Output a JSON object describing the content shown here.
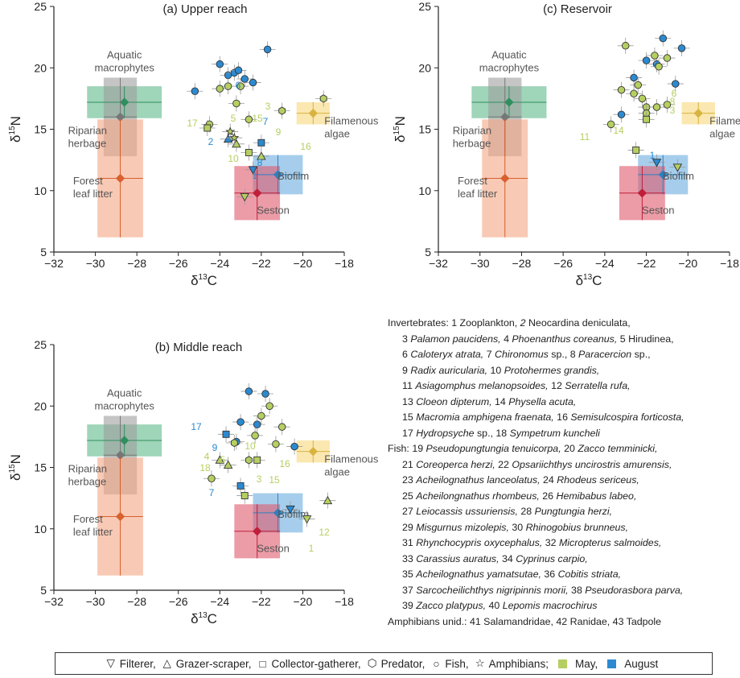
{
  "panels": [
    {
      "title": "(a) Upper reach",
      "sources": [
        {
          "label": "Aquatic\nmacrophytes",
          "x": -28.6,
          "y": 17.2
        },
        {
          "label": "Riparian\nherbage",
          "x": -28.8,
          "y": 16.0
        },
        {
          "label": "Forest\nleaf litter",
          "x": -28.8,
          "y": 11.0
        },
        {
          "label": "Filamenous\nalgae",
          "x": -19.5,
          "y": 16.3
        },
        {
          "label": "Biofilm",
          "x": -21.2,
          "y": 11.3
        },
        {
          "label": "Seston",
          "x": -22.2,
          "y": 9.8
        }
      ],
      "labels": [
        "1",
        "2",
        "3",
        "5",
        "6",
        "7",
        "8",
        "9",
        "10",
        "15",
        "16",
        "17"
      ]
    },
    {
      "title": "(b) Middle reach",
      "sources": [
        {
          "label": "Aquatic\nmacrophytes",
          "x": -28.6,
          "y": 17.2
        },
        {
          "label": "Riparian\nherbage",
          "x": -28.8,
          "y": 16.0
        },
        {
          "label": "Forest\nleaf litter",
          "x": -28.8,
          "y": 11.0
        },
        {
          "label": "Filamenous\nalgae",
          "x": -19.5,
          "y": 16.3
        },
        {
          "label": "Biofilm",
          "x": -21.2,
          "y": 11.3
        },
        {
          "label": "Seston",
          "x": -22.2,
          "y": 9.8
        }
      ],
      "labels": [
        "1",
        "3",
        "4",
        "5",
        "7",
        "9",
        "10",
        "12",
        "15",
        "16",
        "17",
        "18"
      ]
    },
    {
      "title": "(c) Reservoir",
      "sources": [
        {
          "label": "Aquatic\nmacrophytes",
          "x": -28.6,
          "y": 17.2
        },
        {
          "label": "Riparian\nherbage",
          "x": -28.8,
          "y": 16.0
        },
        {
          "label": "Forest\nleaf litter",
          "x": -28.8,
          "y": 11.0
        },
        {
          "label": "Filamenous\nalgae",
          "x": -19.5,
          "y": 16.3
        },
        {
          "label": "Biofilm",
          "x": -21.2,
          "y": 11.3
        },
        {
          "label": "Seston",
          "x": -22.2,
          "y": 9.8
        }
      ],
      "labels": [
        "1",
        "3",
        "6",
        "8",
        "11",
        "14"
      ]
    }
  ],
  "chart_data": [
    {
      "type": "scatter",
      "title": "(a) Upper reach",
      "xlabel": "δ13C",
      "ylabel": "δ15N",
      "xlim": [
        -32,
        -18
      ],
      "ylim": [
        5,
        25
      ],
      "xticks": [
        "-32",
        "-30",
        "-28",
        "-26",
        "-24",
        "-22",
        "-20",
        "-18"
      ],
      "yticks": [
        "5",
        "10",
        "15",
        "20",
        "25"
      ],
      "sources": [
        {
          "name": "Aquatic macrophytes",
          "x": -28.6,
          "y": 17.2,
          "x_err": 1.8,
          "y_err": 1.3,
          "color": "#5fb98b"
        },
        {
          "name": "Riparian herbage",
          "x": -28.8,
          "y": 16.0,
          "x_err": 0.8,
          "y_err": 3.2,
          "color": "#9e9e9e"
        },
        {
          "name": "Forest leaf litter",
          "x": -28.8,
          "y": 11.0,
          "x_err": 1.1,
          "y_err": 4.8,
          "color": "#f4a582"
        },
        {
          "name": "Filamenous algae",
          "x": -19.5,
          "y": 16.3,
          "x_err": 0.8,
          "y_err": 0.9,
          "color": "#f8d77b"
        },
        {
          "name": "Biofilm",
          "x": -21.2,
          "y": 11.3,
          "x_err": 1.2,
          "y_err": 1.6,
          "color": "#6aaee0"
        },
        {
          "name": "Seston",
          "x": -22.2,
          "y": 9.8,
          "x_err": 1.1,
          "y_err": 2.2,
          "color": "#e05a6d"
        }
      ],
      "consumers": [
        {
          "x": -24.0,
          "y": 20.3,
          "group": "Fish",
          "season": "August"
        },
        {
          "x": -23.6,
          "y": 19.4,
          "group": "Fish",
          "season": "August"
        },
        {
          "x": -23.3,
          "y": 19.6,
          "group": "Fish",
          "season": "August"
        },
        {
          "x": -22.8,
          "y": 19.1,
          "group": "Fish",
          "season": "August"
        },
        {
          "x": -22.4,
          "y": 18.8,
          "group": "Fish",
          "season": "August"
        },
        {
          "x": -21.7,
          "y": 21.5,
          "group": "Fish",
          "season": "August"
        },
        {
          "x": -25.2,
          "y": 18.1,
          "group": "Fish",
          "season": "August"
        },
        {
          "x": -23.1,
          "y": 19.8,
          "group": "Fish",
          "season": "August"
        },
        {
          "x": -23.6,
          "y": 18.5,
          "group": "Fish",
          "season": "May"
        },
        {
          "x": -23.0,
          "y": 18.5,
          "group": "Fish",
          "season": "May"
        },
        {
          "x": -24.0,
          "y": 18.3,
          "group": "Fish",
          "season": "May"
        },
        {
          "x": -22.6,
          "y": 15.8,
          "group": "Fish",
          "season": "May"
        },
        {
          "x": -23.2,
          "y": 17.1,
          "group": "Fish",
          "season": "May"
        },
        {
          "x": -24.5,
          "y": 15.4,
          "group": "Fish",
          "season": "May"
        },
        {
          "x": -21.0,
          "y": 16.5,
          "group": "Predator",
          "season": "May"
        },
        {
          "x": -19.0,
          "y": 17.5,
          "group": "Predator",
          "season": "May"
        },
        {
          "x": -23.2,
          "y": 13.8,
          "group": "Grazer-scraper",
          "season": "May"
        },
        {
          "x": -22.0,
          "y": 12.8,
          "group": "Grazer-scraper",
          "season": "May"
        },
        {
          "x": -23.6,
          "y": 14.2,
          "group": "Grazer-scraper",
          "season": "August"
        },
        {
          "x": -24.6,
          "y": 15.1,
          "group": "Collector-gatherer",
          "season": "May"
        },
        {
          "x": -22.6,
          "y": 13.1,
          "group": "Collector-gatherer",
          "season": "May"
        },
        {
          "x": -22.0,
          "y": 13.9,
          "group": "Collector-gatherer",
          "season": "August"
        },
        {
          "x": -22.8,
          "y": 9.5,
          "group": "Filterer",
          "season": "May"
        },
        {
          "x": -22.4,
          "y": 11.7,
          "group": "Filterer",
          "season": "August"
        },
        {
          "x": -23.5,
          "y": 14.8,
          "group": "Amphibians",
          "season": "May"
        },
        {
          "x": -23.3,
          "y": 14.3,
          "group": "Amphibians",
          "season": "May"
        }
      ]
    },
    {
      "type": "scatter",
      "title": "(b) Middle reach",
      "xlabel": "δ13C",
      "ylabel": "δ15N",
      "xlim": [
        -32,
        -18
      ],
      "ylim": [
        5,
        25
      ],
      "xticks": [
        "-32",
        "-30",
        "-28",
        "-26",
        "-24",
        "-22",
        "-20",
        "-18"
      ],
      "yticks": [
        "5",
        "10",
        "15",
        "20",
        "25"
      ],
      "sources": [
        {
          "name": "Aquatic macrophytes",
          "x": -28.6,
          "y": 17.2,
          "x_err": 1.8,
          "y_err": 1.3,
          "color": "#5fb98b"
        },
        {
          "name": "Riparian herbage",
          "x": -28.8,
          "y": 16.0,
          "x_err": 0.8,
          "y_err": 3.2,
          "color": "#9e9e9e"
        },
        {
          "name": "Forest leaf litter",
          "x": -28.8,
          "y": 11.0,
          "x_err": 1.1,
          "y_err": 4.8,
          "color": "#f4a582"
        },
        {
          "name": "Filamenous algae",
          "x": -19.5,
          "y": 16.3,
          "x_err": 0.8,
          "y_err": 0.9,
          "color": "#f8d77b"
        },
        {
          "name": "Biofilm",
          "x": -21.2,
          "y": 11.3,
          "x_err": 1.2,
          "y_err": 1.6,
          "color": "#6aaee0"
        },
        {
          "name": "Seston",
          "x": -22.2,
          "y": 9.8,
          "x_err": 1.1,
          "y_err": 2.2,
          "color": "#e05a6d"
        }
      ],
      "consumers": [
        {
          "x": -22.6,
          "y": 21.2,
          "group": "Fish",
          "season": "August"
        },
        {
          "x": -21.8,
          "y": 21.0,
          "group": "Fish",
          "season": "August"
        },
        {
          "x": -22.2,
          "y": 18.5,
          "group": "Fish",
          "season": "August"
        },
        {
          "x": -23.0,
          "y": 18.7,
          "group": "Fish",
          "season": "August"
        },
        {
          "x": -23.2,
          "y": 17.1,
          "group": "Fish",
          "season": "August"
        },
        {
          "x": -20.4,
          "y": 16.7,
          "group": "Fish",
          "season": "August"
        },
        {
          "x": -21.6,
          "y": 20.0,
          "group": "Fish",
          "season": "May"
        },
        {
          "x": -22.0,
          "y": 19.2,
          "group": "Fish",
          "season": "May"
        },
        {
          "x": -21.0,
          "y": 18.3,
          "group": "Fish",
          "season": "May"
        },
        {
          "x": -22.3,
          "y": 17.6,
          "group": "Fish",
          "season": "May"
        },
        {
          "x": -21.3,
          "y": 16.9,
          "group": "Fish",
          "season": "May"
        },
        {
          "x": -24.4,
          "y": 14.1,
          "group": "Fish",
          "season": "May"
        },
        {
          "x": -23.3,
          "y": 17.0,
          "group": "Predator",
          "season": "May"
        },
        {
          "x": -22.6,
          "y": 15.6,
          "group": "Predator",
          "season": "May"
        },
        {
          "x": -23.6,
          "y": 15.2,
          "group": "Grazer-scraper",
          "season": "May"
        },
        {
          "x": -18.8,
          "y": 12.3,
          "group": "Grazer-scraper",
          "season": "May"
        },
        {
          "x": -24.0,
          "y": 15.6,
          "group": "Grazer-scraper",
          "season": "May"
        },
        {
          "x": -23.7,
          "y": 17.7,
          "group": "Collector-gatherer",
          "season": "August"
        },
        {
          "x": -23.0,
          "y": 13.5,
          "group": "Collector-gatherer",
          "season": "August"
        },
        {
          "x": -22.2,
          "y": 15.6,
          "group": "Collector-gatherer",
          "season": "May"
        },
        {
          "x": -22.8,
          "y": 12.7,
          "group": "Collector-gatherer",
          "season": "May"
        },
        {
          "x": -19.8,
          "y": 10.8,
          "group": "Filterer",
          "season": "May"
        },
        {
          "x": -20.6,
          "y": 11.6,
          "group": "Filterer",
          "season": "August"
        }
      ]
    },
    {
      "type": "scatter",
      "title": "(c) Reservoir",
      "xlabel": "δ13C",
      "ylabel": "δ15N",
      "xlim": [
        -32,
        -18
      ],
      "ylim": [
        5,
        25
      ],
      "xticks": [
        "-32",
        "-30",
        "-28",
        "-26",
        "-24",
        "-22",
        "-20",
        "-18"
      ],
      "yticks": [
        "5",
        "10",
        "15",
        "20",
        "25"
      ],
      "sources": [
        {
          "name": "Aquatic macrophytes",
          "x": -28.6,
          "y": 17.2,
          "x_err": 1.8,
          "y_err": 1.3,
          "color": "#5fb98b"
        },
        {
          "name": "Riparian herbage",
          "x": -28.8,
          "y": 16.0,
          "x_err": 0.8,
          "y_err": 3.2,
          "color": "#9e9e9e"
        },
        {
          "name": "Forest leaf litter",
          "x": -28.8,
          "y": 11.0,
          "x_err": 1.1,
          "y_err": 4.8,
          "color": "#f4a582"
        },
        {
          "name": "Filamenous algae",
          "x": -19.5,
          "y": 16.3,
          "x_err": 0.8,
          "y_err": 0.9,
          "color": "#f8d77b"
        },
        {
          "name": "Biofilm",
          "x": -21.2,
          "y": 11.3,
          "x_err": 1.2,
          "y_err": 1.6,
          "color": "#6aaee0"
        },
        {
          "name": "Seston",
          "x": -22.2,
          "y": 9.8,
          "x_err": 1.1,
          "y_err": 2.2,
          "color": "#e05a6d"
        }
      ],
      "consumers": [
        {
          "x": -21.2,
          "y": 22.4,
          "group": "Fish",
          "season": "August"
        },
        {
          "x": -20.3,
          "y": 21.6,
          "group": "Fish",
          "season": "August"
        },
        {
          "x": -22.0,
          "y": 20.6,
          "group": "Fish",
          "season": "August"
        },
        {
          "x": -21.5,
          "y": 20.3,
          "group": "Fish",
          "season": "August"
        },
        {
          "x": -22.6,
          "y": 19.2,
          "group": "Fish",
          "season": "August"
        },
        {
          "x": -20.6,
          "y": 18.7,
          "group": "Fish",
          "season": "August"
        },
        {
          "x": -23.2,
          "y": 16.2,
          "group": "Fish",
          "season": "August"
        },
        {
          "x": -23.0,
          "y": 21.8,
          "group": "Fish",
          "season": "May"
        },
        {
          "x": -21.6,
          "y": 21.0,
          "group": "Fish",
          "season": "May"
        },
        {
          "x": -21.0,
          "y": 20.8,
          "group": "Fish",
          "season": "May"
        },
        {
          "x": -21.4,
          "y": 20.1,
          "group": "Fish",
          "season": "May"
        },
        {
          "x": -22.4,
          "y": 18.6,
          "group": "Fish",
          "season": "May"
        },
        {
          "x": -23.2,
          "y": 18.2,
          "group": "Fish",
          "season": "May"
        },
        {
          "x": -22.2,
          "y": 17.5,
          "group": "Fish",
          "season": "May"
        },
        {
          "x": -22.0,
          "y": 16.8,
          "group": "Fish",
          "season": "May"
        },
        {
          "x": -21.5,
          "y": 16.8,
          "group": "Fish",
          "season": "May"
        },
        {
          "x": -21.0,
          "y": 17.0,
          "group": "Fish",
          "season": "May"
        },
        {
          "x": -22.6,
          "y": 17.9,
          "group": "Fish",
          "season": "May"
        },
        {
          "x": -23.7,
          "y": 15.4,
          "group": "Fish",
          "season": "May"
        },
        {
          "x": -22.0,
          "y": 16.3,
          "group": "Fish",
          "season": "May"
        },
        {
          "x": -22.0,
          "y": 15.8,
          "group": "Collector-gatherer",
          "season": "May"
        },
        {
          "x": -22.5,
          "y": 13.3,
          "group": "Collector-gatherer",
          "season": "May"
        },
        {
          "x": -21.5,
          "y": 12.3,
          "group": "Filterer",
          "season": "August"
        },
        {
          "x": -20.5,
          "y": 11.9,
          "group": "Filterer",
          "season": "May"
        }
      ]
    }
  ],
  "species_list": {
    "invert_title": "Invertebrates:",
    "fish_title": "Fish:",
    "amph_title": "Amphibians unid.:",
    "invert_lines": [
      [
        "1 Zooplankton, ",
        "2 ",
        "Neocardina deniculata,"
      ],
      [
        "3 ",
        "Palamon paucidens,",
        " 4 ",
        "Phoenanthus coreanus,",
        " 5 Hirudinea,"
      ],
      [
        "6 ",
        "Caloteryx atrata,",
        " 7 ",
        "Chironomus",
        " sp., 8 ",
        "Paracercion",
        " sp.,"
      ],
      [
        "9 ",
        "Radix auricularia,",
        " 10 ",
        "Protohermes grandis,"
      ],
      [
        "11 ",
        "Asiagomphus melanopsoides,",
        " 12 ",
        "Serratella rufa,"
      ],
      [
        "13 ",
        "Cloeon dipterum,",
        " 14 ",
        "Physella acuta,"
      ],
      [
        "15 ",
        "Macromia amphigena fraenata,",
        " 16 ",
        "Semisulcospira forticosta,"
      ],
      [
        "17 ",
        "Hydropsyche",
        " sp., 18 ",
        "Sympetrum kuncheli"
      ]
    ],
    "fish_lines": [
      [
        "19 ",
        "Pseudopungtungia tenuicorpa,",
        " 20 ",
        "Zacco temminicki,"
      ],
      [
        "21 ",
        "Coreoperca herzi,",
        " 22 ",
        "Opsariichthys uncirostris amurensis,"
      ],
      [
        "23 ",
        "Acheilognathus lanceolatus,",
        " 24 ",
        "Rhodeus sericeus,"
      ],
      [
        "25 ",
        "Acheilongnathus rhombeus,",
        " 26 ",
        "Hemibabus labeo,"
      ],
      [
        "27 ",
        "Leiocassis ussuriensis,",
        " 28 ",
        "Pungtungia herzi,"
      ],
      [
        "29 ",
        "Misgurnus mizolepis,",
        " 30 ",
        "Rhinogobius brunneus,"
      ],
      [
        "31 ",
        "Rhynchocypris oxycephalus,",
        " 32 ",
        "Micropterus salmoides,"
      ],
      [
        "33 ",
        "Carassius auratus,",
        " 34 ",
        "Cyprinus carpio,"
      ],
      [
        "35 ",
        "Acheilognathus yamatsutae,",
        " 36 ",
        "Cobitis striata,"
      ],
      [
        "37 ",
        "Sarcocheilichthys nigripinnis morii,",
        " 38 ",
        "Pseudorasbora parva,"
      ],
      [
        "39 ",
        "Zacco platypus,",
        " 40 ",
        "Lepomis macrochirus"
      ]
    ],
    "amph_line": "41 Salamandridae, 42 Ranidae, 43 Tadpole"
  },
  "legend": {
    "filterer": "Filterer,",
    "grazer": "Grazer-scraper,",
    "collector": "Collector-gatherer,",
    "predator": "Predator,",
    "fish": "Fish,",
    "amphibians": "Amphibians;",
    "may": "May,",
    "august": "August",
    "colors": {
      "may": "#b5cf61",
      "august": "#2b8ad1"
    }
  }
}
